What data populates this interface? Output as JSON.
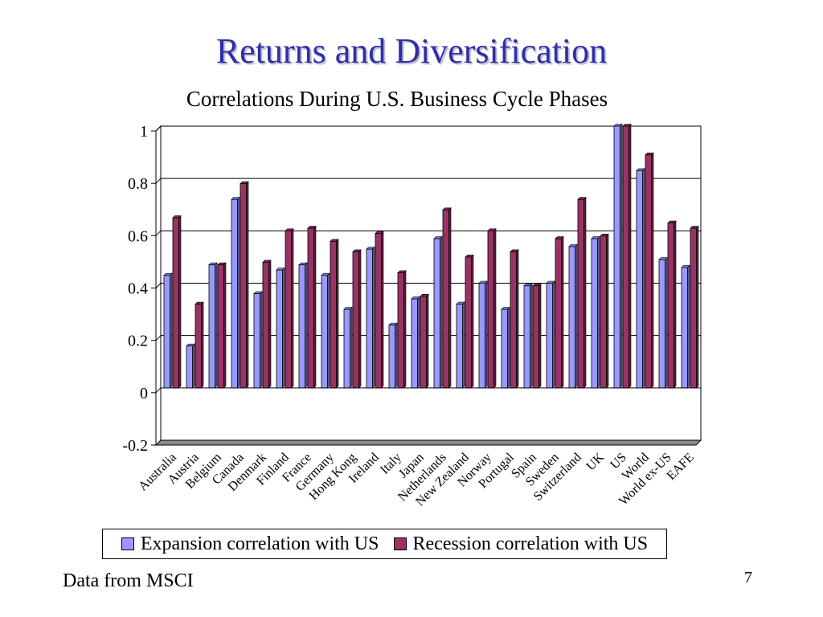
{
  "slide": {
    "title": "Returns and Diversification",
    "footer_source": "Data from MSCI",
    "page_number": "7"
  },
  "chart_data": {
    "type": "bar",
    "title": "Correlations During U.S. Business Cycle Phases",
    "xlabel": "",
    "ylabel": "",
    "ylim": [
      -0.2,
      1
    ],
    "yticks": [
      "1",
      "0.8",
      "0.6",
      "0.4",
      "0.2",
      "0",
      "-0.2"
    ],
    "grid": true,
    "legend_position": "bottom",
    "categories": [
      "Australia",
      "Austria",
      "Belgium",
      "Canada",
      "Denmark",
      "Finland",
      "France",
      "Germany",
      "Hong Kong",
      "Ireland",
      "Italy",
      "Japan",
      "Netherlands",
      "New Zealand",
      "Norway",
      "Portugal",
      "Spain",
      "Sweden",
      "Switzerland",
      "UK",
      "US",
      "World",
      "World ex-US",
      "EAFE"
    ],
    "series": [
      {
        "name": "Expansion correlation with US",
        "color": "#9999ff",
        "values": [
          0.43,
          0.16,
          0.47,
          0.72,
          0.36,
          0.45,
          0.47,
          0.43,
          0.3,
          0.53,
          0.24,
          0.34,
          0.57,
          0.32,
          0.4,
          0.3,
          0.39,
          0.4,
          0.54,
          0.57,
          1.0,
          0.83,
          0.49,
          0.46
        ]
      },
      {
        "name": "Recession correlation with US",
        "color": "#993366",
        "values": [
          0.65,
          0.32,
          0.47,
          0.78,
          0.48,
          0.6,
          0.61,
          0.56,
          0.52,
          0.59,
          0.44,
          0.35,
          0.68,
          0.5,
          0.6,
          0.52,
          0.39,
          0.57,
          0.72,
          0.58,
          1.0,
          0.89,
          0.63,
          0.61
        ]
      }
    ]
  }
}
